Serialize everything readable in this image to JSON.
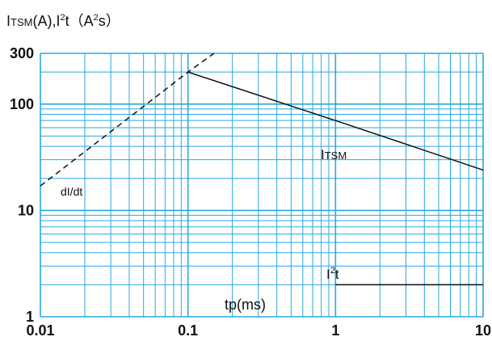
{
  "chart_data": {
    "type": "line",
    "title": {
      "i_main": "I",
      "i_sub": "TSM",
      "middle": "(A),I",
      "sq1": "2",
      "t_part": "t（A",
      "sq2": "2",
      "end": "s）"
    },
    "xlabel": "tp(ms)",
    "xscale": "log",
    "yscale": "log",
    "xlim": [
      0.01,
      10
    ],
    "ylim": [
      1,
      300
    ],
    "grid": true,
    "grid_color": "#29a8e0",
    "x_tick_labels": [
      "0.01",
      "0.1",
      "1",
      "10"
    ],
    "y_tick_labels": [
      "1",
      "10",
      "100",
      "300"
    ],
    "series": [
      {
        "name_main": "I",
        "name_sub": "TSM",
        "style": "solid",
        "color": "#111111",
        "x": [
          0.1,
          1,
          10
        ],
        "y": [
          200,
          70,
          24
        ]
      },
      {
        "name_main": "I",
        "name_sup": "2",
        "name_end": "t",
        "style": "solid",
        "color": "#111111",
        "x": [
          1,
          10
        ],
        "y": [
          2,
          2
        ]
      },
      {
        "name": "dI/dt",
        "style": "dashed",
        "color": "#111111",
        "x": [
          0.01,
          0.1,
          0.15
        ],
        "y": [
          17,
          200,
          300
        ]
      }
    ]
  }
}
